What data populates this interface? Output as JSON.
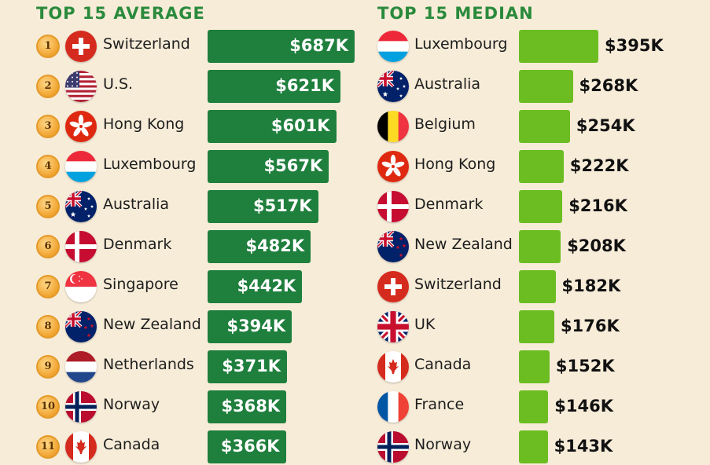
{
  "chart_data": [
    {
      "type": "bar",
      "title": "TOP 15 AVERAGE",
      "orientation": "horizontal",
      "value_unit": "USD thousands",
      "categories": [
        "Switzerland",
        "U.S.",
        "Hong Kong",
        "Luxembourg",
        "Australia",
        "Denmark",
        "Singapore",
        "New Zealand",
        "Netherlands",
        "Norway",
        "Canada"
      ],
      "values": [
        687,
        621,
        601,
        567,
        517,
        482,
        442,
        394,
        371,
        368,
        366
      ],
      "labels": [
        "$687K",
        "$621K",
        "$601K",
        "$567K",
        "$517K",
        "$482K",
        "$442K",
        "$394K",
        "$371K",
        "$368K",
        "$366K"
      ],
      "ranks": [
        "1",
        "2",
        "3",
        "4",
        "5",
        "6",
        "7",
        "8",
        "9",
        "10",
        "11"
      ],
      "flags": [
        "switzerland-flag",
        "us-flag",
        "hong-kong-flag",
        "luxembourg-flag",
        "australia-flag",
        "denmark-flag",
        "singapore-flag",
        "new-zealand-flag",
        "netherlands-flag",
        "norway-flag",
        "canada-flag"
      ],
      "bar_color": "#1f7f3d"
    },
    {
      "type": "bar",
      "title": "TOP 15 MEDIAN",
      "orientation": "horizontal",
      "value_unit": "USD thousands",
      "categories": [
        "Luxembourg",
        "Australia",
        "Belgium",
        "Hong Kong",
        "Denmark",
        "New Zealand",
        "Switzerland",
        "UK",
        "Canada",
        "France",
        "Norway"
      ],
      "values": [
        395,
        268,
        254,
        222,
        216,
        208,
        182,
        176,
        152,
        146,
        143
      ],
      "labels": [
        "$395K",
        "$268K",
        "$254K",
        "$222K",
        "$216K",
        "$208K",
        "$182K",
        "$176K",
        "$152K",
        "$146K",
        "$143K"
      ],
      "flags": [
        "luxembourg-flag",
        "australia-flag",
        "belgium-flag",
        "hong-kong-flag",
        "denmark-flag",
        "new-zealand-flag",
        "switzerland-flag",
        "uk-flag",
        "canada-flag",
        "france-flag",
        "norway-flag"
      ],
      "bar_color": "#6cbd22"
    }
  ],
  "colors": {
    "background": "#f7ecd8",
    "title": "#2a8a3c",
    "rank_badge": "#f0a32e"
  }
}
